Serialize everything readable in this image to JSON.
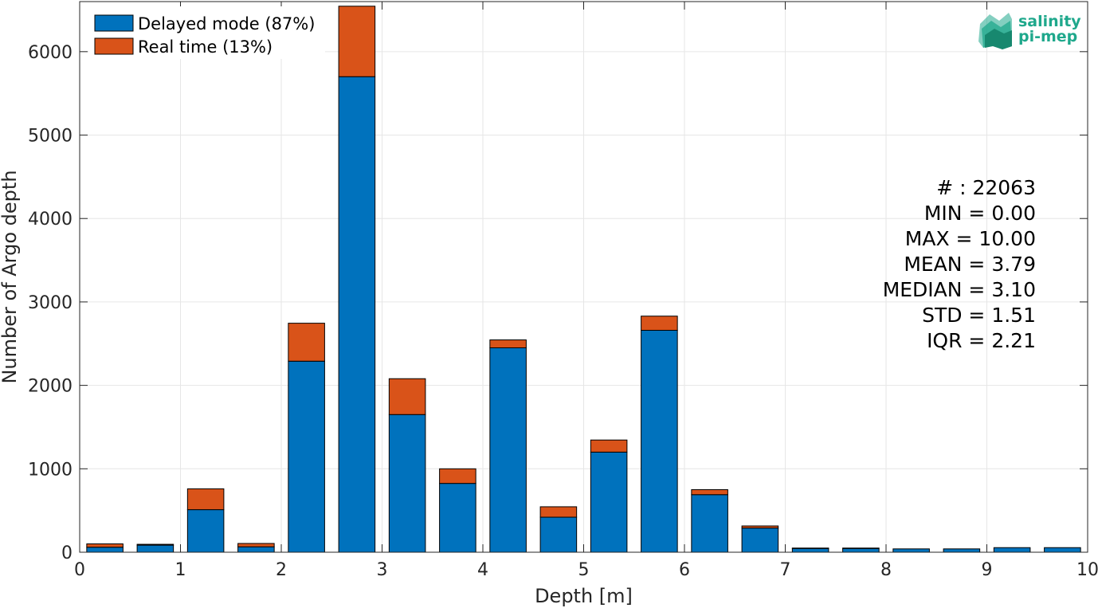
{
  "colors": {
    "delayed": "#0072BD",
    "realtime": "#D95319",
    "grid": "#E6E6E6",
    "axis": "#262626",
    "logo": "#1FA88C"
  },
  "logo": {
    "line1": "salinity",
    "line2": "pi-mep"
  },
  "chart_data": {
    "type": "bar",
    "stacked": true,
    "xlabel": "Depth [m]",
    "ylabel": "Number of Argo depth",
    "xlim": [
      0,
      10
    ],
    "ylim": [
      0,
      6600
    ],
    "xticks": [
      "0",
      "1",
      "2",
      "3",
      "4",
      "5",
      "6",
      "7",
      "8",
      "9",
      "10"
    ],
    "yticks": [
      "0",
      "1000",
      "2000",
      "3000",
      "4000",
      "5000",
      "6000"
    ],
    "grid": true,
    "legend_position": "top-left",
    "bin_width": 0.5,
    "x": [
      0.25,
      0.75,
      1.25,
      1.75,
      2.25,
      2.75,
      3.25,
      3.75,
      4.25,
      4.75,
      5.25,
      5.75,
      6.25,
      6.75,
      7.25,
      7.75,
      8.25,
      8.75,
      9.25,
      9.75
    ],
    "series": [
      {
        "name": "Delayed mode (87%)",
        "values": [
          60,
          85,
          510,
          65,
          2290,
          5700,
          1650,
          825,
          2450,
          420,
          1200,
          2660,
          690,
          290,
          45,
          45,
          40,
          40,
          55,
          55
        ]
      },
      {
        "name": "Real time (13%)",
        "values": [
          40,
          10,
          250,
          40,
          455,
          845,
          430,
          175,
          95,
          125,
          145,
          170,
          60,
          25,
          5,
          5,
          0,
          0,
          0,
          0
        ]
      }
    ],
    "annotations": [
      "# : 22063",
      "MIN = 0.00",
      "MAX =  10.00",
      "MEAN = 3.79",
      "MEDIAN = 3.10",
      "STD = 1.51",
      "IQR = 2.21"
    ]
  }
}
